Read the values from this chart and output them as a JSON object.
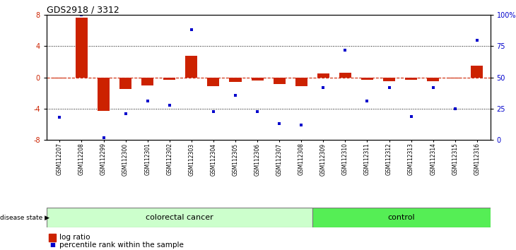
{
  "title": "GDS2918 / 3312",
  "samples": [
    "GSM112207",
    "GSM112208",
    "GSM112299",
    "GSM112300",
    "GSM112301",
    "GSM112302",
    "GSM112303",
    "GSM112304",
    "GSM112305",
    "GSM112306",
    "GSM112307",
    "GSM112308",
    "GSM112309",
    "GSM112310",
    "GSM112311",
    "GSM112312",
    "GSM112313",
    "GSM112314",
    "GSM112315",
    "GSM112316"
  ],
  "log_ratio": [
    -0.15,
    7.7,
    -4.3,
    -1.5,
    -1.0,
    -0.3,
    2.8,
    -1.1,
    -0.6,
    -0.4,
    -0.8,
    -1.1,
    0.5,
    0.6,
    -0.3,
    -0.5,
    -0.3,
    -0.5,
    -0.1,
    1.5
  ],
  "percentile_pct": [
    18,
    100,
    2,
    21,
    31,
    28,
    88,
    23,
    36,
    23,
    13,
    12,
    42,
    72,
    31,
    42,
    19,
    42,
    25,
    80
  ],
  "n_colorectal": 12,
  "n_control": 8,
  "colorectal_label": "colorectal cancer",
  "control_label": "control",
  "disease_state_label": "disease state",
  "legend_log_ratio": "log ratio",
  "legend_percentile": "percentile rank within the sample",
  "bar_color": "#cc2200",
  "dot_color": "#0000cc",
  "zero_line_color": "#cc2200",
  "ylim": [
    -8,
    8
  ],
  "yticks_left": [
    -8,
    -4,
    0,
    4,
    8
  ],
  "yticks_right_vals": [
    0,
    25,
    50,
    75,
    100
  ],
  "colorectal_bg": "#ccffcc",
  "control_bg": "#55ee55",
  "bar_width": 0.55
}
